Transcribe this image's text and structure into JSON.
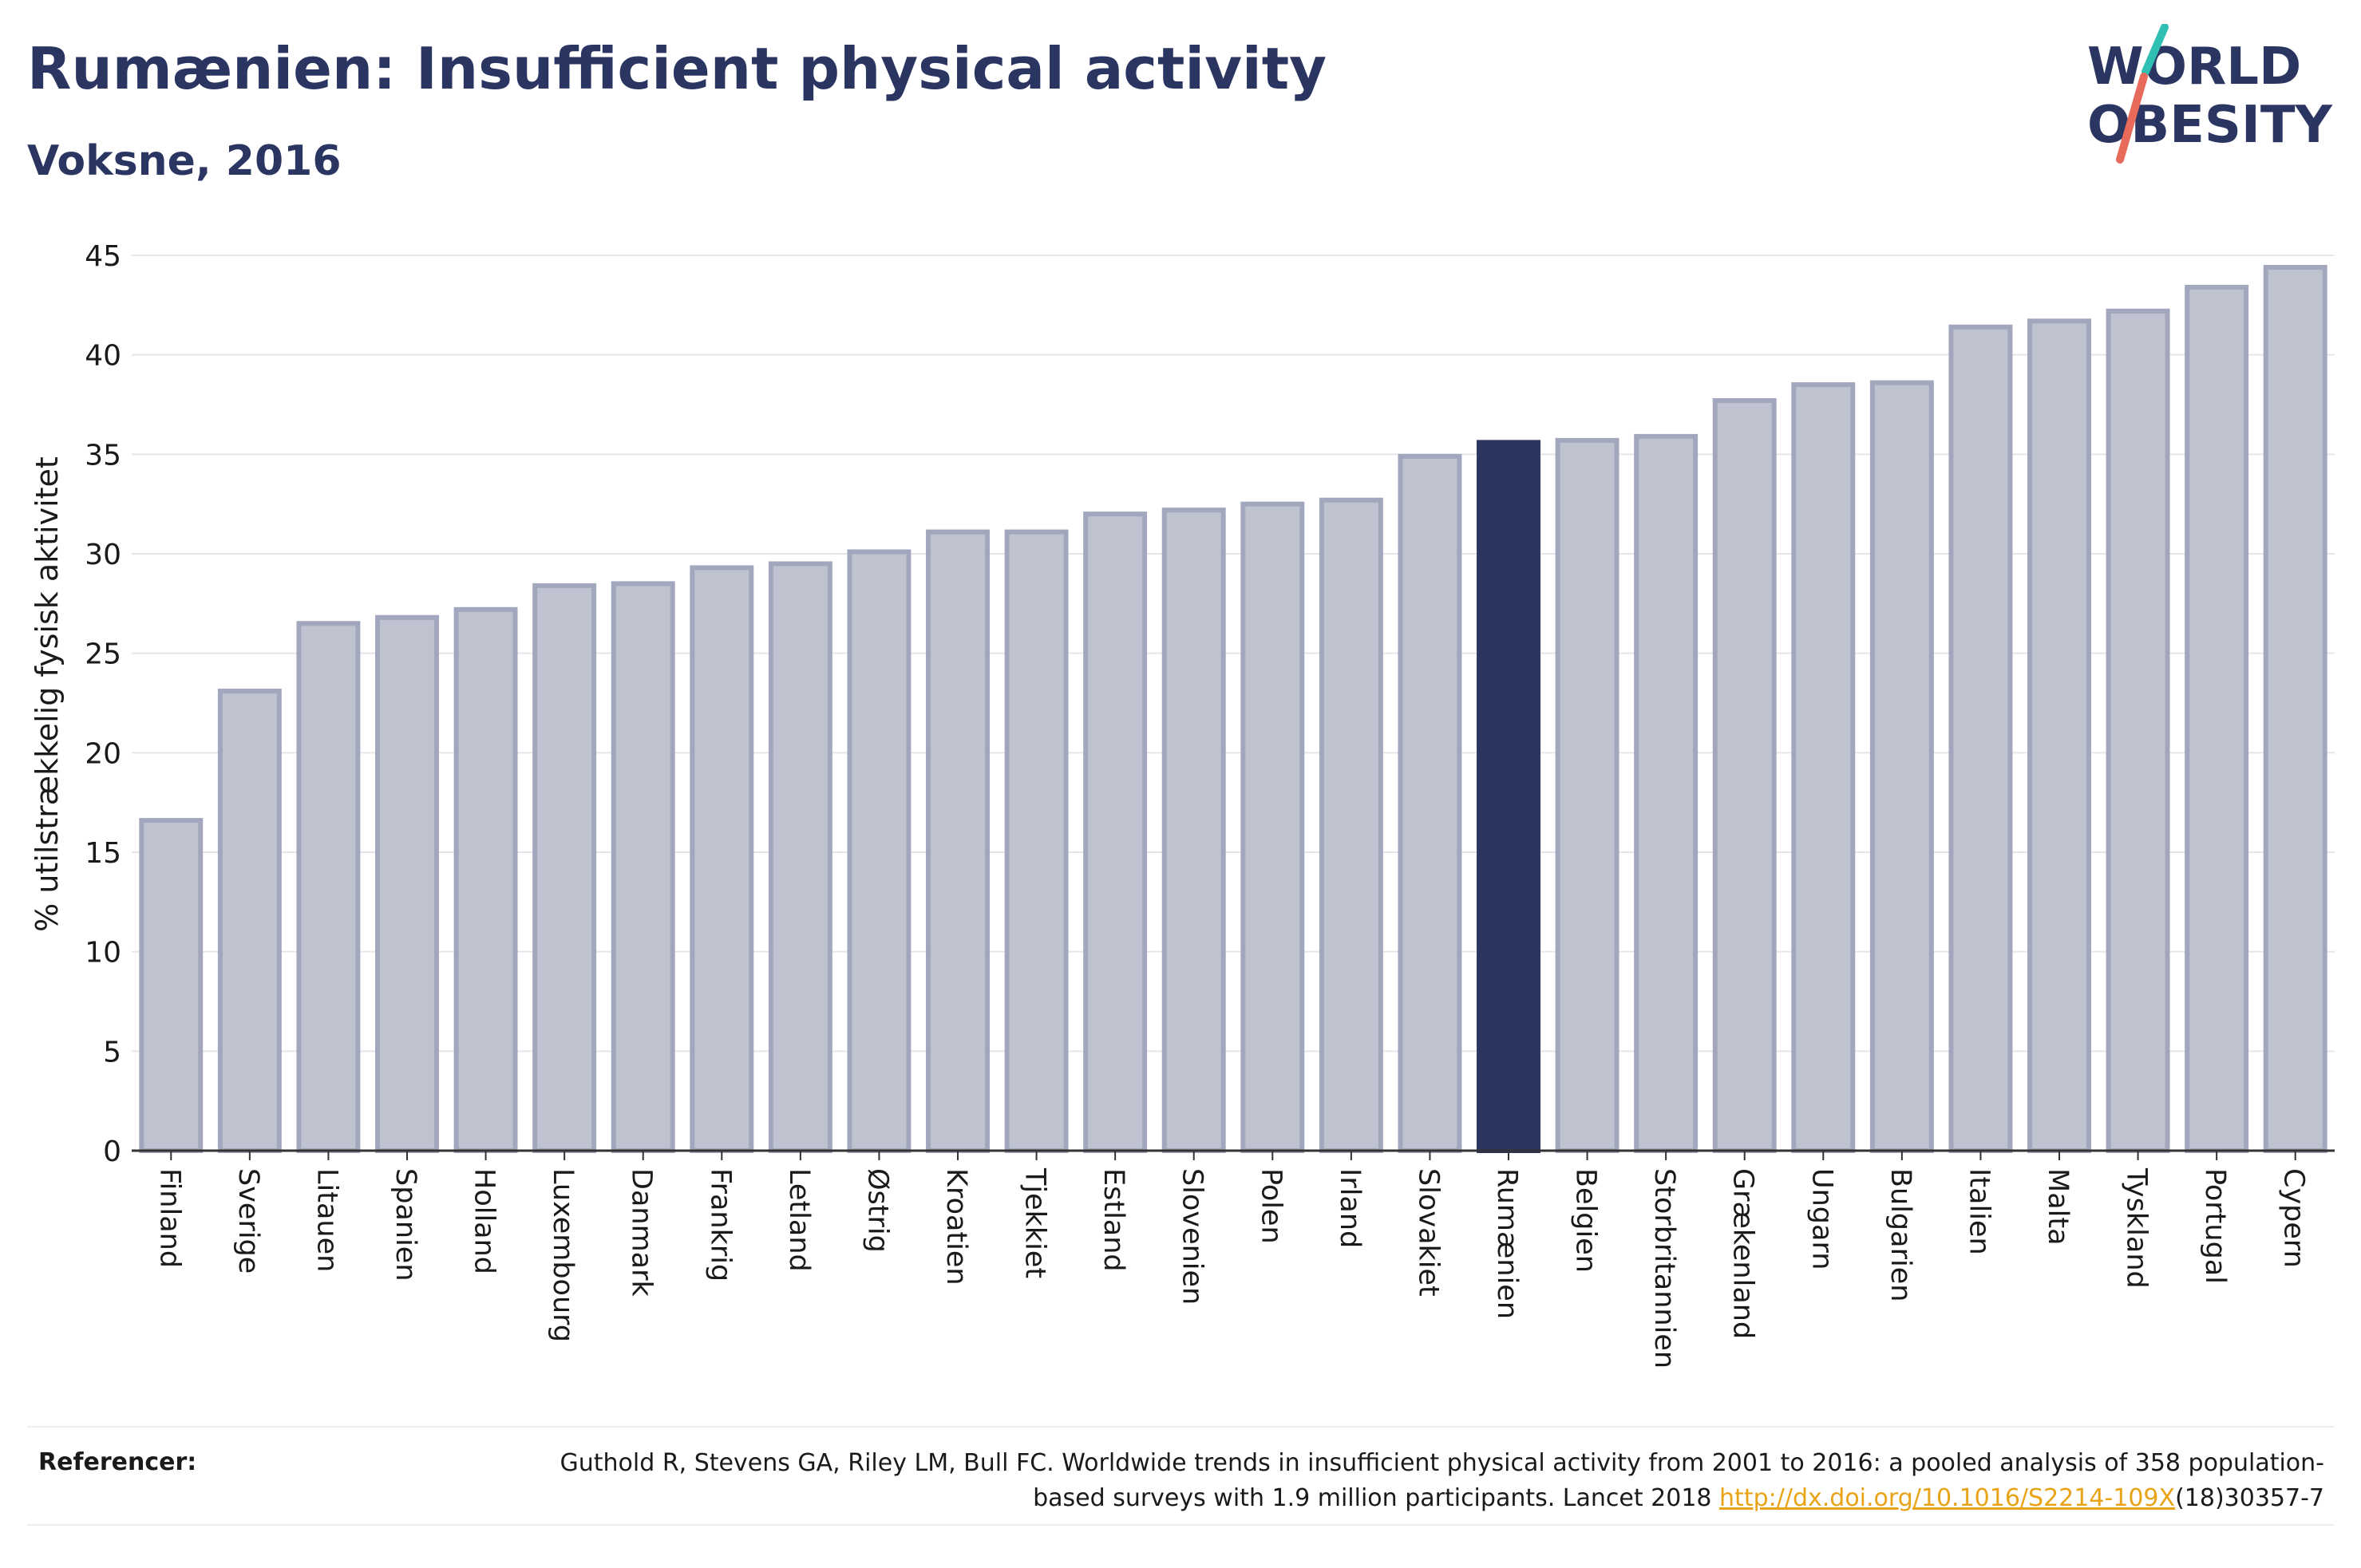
{
  "header": {
    "title": "Rumænien: Insufficient physical activity",
    "subtitle": "Voksne, 2016"
  },
  "logo": {
    "line1": "WORLD",
    "line2": "OBESITY"
  },
  "chart_data": {
    "type": "bar",
    "title": "Rumænien: Insufficient physical activity",
    "subtitle": "Voksne, 2016",
    "xlabel": "",
    "ylabel": "% utilstrækkelig fysisk aktivitet",
    "ylim": [
      0,
      45
    ],
    "yticks": [
      0,
      5,
      10,
      15,
      20,
      25,
      30,
      35,
      40,
      45
    ],
    "grid": true,
    "highlight": "Rumænien",
    "colors": {
      "bar": "#bfc2cf",
      "bar_edge": "#a2a7bd",
      "highlight": "#2b3561",
      "grid": "#e6e6ea"
    },
    "categories": [
      "Finland",
      "Sverige",
      "Litauen",
      "Spanien",
      "Holland",
      "Luxembourg",
      "Danmark",
      "Frankrig",
      "Letland",
      "Østrig",
      "Kroatien",
      "Tjekkiet",
      "Estland",
      "Slovenien",
      "Polen",
      "Irland",
      "Slovakiet",
      "Rumænien",
      "Belgien",
      "Storbritannien",
      "Grækenland",
      "Ungarn",
      "Bulgarien",
      "Italien",
      "Malta",
      "Tyskland",
      "Portugal",
      "Cypern"
    ],
    "values": [
      16.6,
      23.1,
      26.5,
      26.8,
      27.2,
      28.4,
      28.5,
      29.3,
      29.5,
      30.1,
      31.1,
      31.1,
      32.0,
      32.2,
      32.5,
      32.7,
      34.9,
      35.6,
      35.7,
      35.9,
      37.7,
      38.5,
      38.6,
      41.4,
      41.7,
      42.2,
      43.4,
      44.4
    ]
  },
  "references": {
    "label": "Referencer:",
    "text_before": "Guthold R, Stevens GA, Riley LM, Bull FC. Worldwide trends in insufficient physical activity from 2001 to 2016: a pooled analysis of 358 population-based surveys with 1.9 million participants. Lancet 2018 ",
    "link": "http://dx.doi.org/10.1016/S2214-109X",
    "text_after": "(18)30357-7"
  }
}
